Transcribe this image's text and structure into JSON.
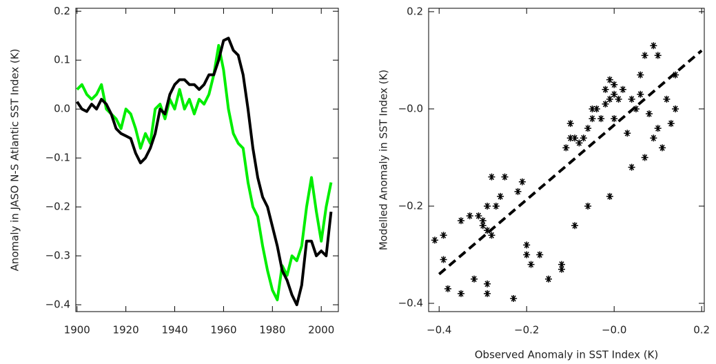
{
  "chart_data": [
    {
      "type": "line",
      "y_label": "Anomaly in JASO N-S Atlantic SST Index (K)",
      "x": [
        1900,
        1902,
        1904,
        1906,
        1908,
        1910,
        1912,
        1914,
        1916,
        1918,
        1920,
        1922,
        1924,
        1926,
        1928,
        1930,
        1932,
        1934,
        1936,
        1938,
        1940,
        1942,
        1944,
        1946,
        1948,
        1950,
        1952,
        1954,
        1956,
        1958,
        1960,
        1962,
        1964,
        1966,
        1968,
        1970,
        1972,
        1974,
        1976,
        1978,
        1980,
        1982,
        1984,
        1986,
        1988,
        1990,
        1992,
        1994,
        1996,
        1998,
        2000,
        2002,
        2004
      ],
      "series": [
        {
          "color": "#00ee00",
          "values": [
            0.04,
            0.05,
            0.03,
            0.02,
            0.03,
            0.05,
            0.0,
            -0.01,
            -0.02,
            -0.04,
            0.0,
            -0.01,
            -0.04,
            -0.08,
            -0.05,
            -0.07,
            0.0,
            0.01,
            -0.02,
            0.02,
            0.0,
            0.04,
            0.0,
            0.02,
            -0.01,
            0.02,
            0.01,
            0.03,
            0.07,
            0.13,
            0.08,
            0.0,
            -0.05,
            -0.07,
            -0.08,
            -0.15,
            -0.2,
            -0.22,
            -0.28,
            -0.33,
            -0.37,
            -0.39,
            -0.32,
            -0.34,
            -0.3,
            -0.31,
            -0.28,
            -0.2,
            -0.14,
            -0.21,
            -0.27,
            -0.2,
            -0.15
          ]
        },
        {
          "color": "#000000",
          "values": [
            0.015,
            0.0,
            -0.005,
            0.01,
            0.0,
            0.02,
            0.01,
            -0.01,
            -0.04,
            -0.05,
            -0.055,
            -0.06,
            -0.09,
            -0.11,
            -0.1,
            -0.08,
            -0.05,
            0.0,
            -0.01,
            0.03,
            0.05,
            0.06,
            0.06,
            0.05,
            0.05,
            0.04,
            0.05,
            0.07,
            0.07,
            0.1,
            0.14,
            0.145,
            0.12,
            0.11,
            0.07,
            0.0,
            -0.08,
            -0.14,
            -0.18,
            -0.2,
            -0.24,
            -0.28,
            -0.33,
            -0.35,
            -0.38,
            -0.4,
            -0.36,
            -0.27,
            -0.27,
            -0.3,
            -0.29,
            -0.3,
            -0.21
          ]
        }
      ],
      "xlim": [
        1899.5,
        2007
      ],
      "xticks": [
        1900,
        1920,
        1940,
        1960,
        1980,
        2000
      ],
      "ylim": [
        -0.414,
        0.206
      ],
      "yticks": [
        0.2,
        0.1,
        {
          "value": 0,
          "label": "0.0"
        },
        {
          "value": -0.1,
          "label": "−0.1"
        },
        {
          "value": -0.2,
          "label": "−0.2"
        },
        {
          "value": -0.3,
          "label": "−0.3"
        },
        {
          "value": -0.4,
          "label": "−0.4"
        }
      ]
    },
    {
      "type": "scatter",
      "x_label": "Observed Anomaly in SST Index (K)",
      "y_label": "Modelled Anomaly in SST Index (K)",
      "color": "#000000",
      "x": [
        -0.41,
        -0.39,
        -0.39,
        -0.38,
        -0.35,
        -0.35,
        -0.33,
        -0.32,
        -0.31,
        -0.3,
        -0.3,
        -0.29,
        -0.29,
        -0.29,
        -0.29,
        -0.28,
        -0.28,
        -0.27,
        -0.26,
        -0.25,
        -0.23,
        -0.22,
        -0.21,
        -0.2,
        -0.2,
        -0.19,
        -0.17,
        -0.15,
        -0.12,
        -0.12,
        -0.11,
        -0.1,
        -0.1,
        -0.09,
        -0.08,
        -0.07,
        -0.06,
        -0.06,
        -0.05,
        -0.05,
        -0.04,
        -0.03,
        -0.02,
        -0.02,
        -0.01,
        -0.01,
        0.0,
        0.0,
        0.0,
        0.01,
        0.02,
        0.03,
        0.04,
        0.05,
        0.06,
        0.06,
        0.07,
        0.08,
        0.09,
        -0.01,
        0.04,
        0.07,
        0.09,
        0.1,
        0.11,
        0.12,
        0.13,
        0.14,
        0.14,
        0.1,
        -0.09
      ],
      "values": [
        -0.27,
        -0.26,
        -0.31,
        -0.37,
        -0.38,
        -0.23,
        -0.22,
        -0.35,
        -0.22,
        -0.23,
        -0.24,
        -0.2,
        -0.25,
        -0.36,
        -0.38,
        -0.26,
        -0.14,
        -0.2,
        -0.18,
        -0.14,
        -0.39,
        -0.17,
        -0.15,
        -0.28,
        -0.3,
        -0.32,
        -0.3,
        -0.35,
        -0.33,
        -0.32,
        -0.08,
        -0.06,
        -0.03,
        -0.06,
        -0.07,
        -0.06,
        -0.04,
        -0.2,
        0.0,
        -0.02,
        0.0,
        -0.02,
        0.01,
        0.04,
        0.06,
        0.02,
        0.03,
        0.05,
        -0.02,
        0.02,
        0.04,
        -0.05,
        0.02,
        0.0,
        0.03,
        0.07,
        0.11,
        -0.01,
        -0.06,
        -0.18,
        -0.12,
        -0.1,
        0.13,
        0.11,
        -0.08,
        0.02,
        -0.03,
        0.07,
        0.0,
        -0.04,
        -0.24
      ],
      "fit": {
        "x": [
          -0.4,
          0.2
        ],
        "values": [
          -0.34,
          0.12
        ]
      },
      "xlim": [
        -0.424,
        0.206
      ],
      "xticks": [
        {
          "value": -0.4,
          "label": "−0.4"
        },
        {
          "value": -0.2,
          "label": "−0.2"
        },
        {
          "value": 0,
          "label": "−0.0"
        },
        0.2
      ],
      "ylim": [
        -0.417,
        0.207
      ],
      "yticks": [
        0.2,
        {
          "value": 0,
          "label": "−0.0"
        },
        {
          "value": -0.2,
          "label": "−0.2"
        },
        {
          "value": -0.4,
          "label": "−0.4"
        }
      ]
    }
  ]
}
